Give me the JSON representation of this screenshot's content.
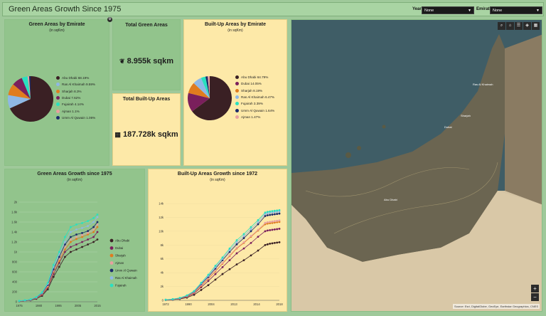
{
  "header": {
    "title": "Green Areas Growth Since 1975",
    "year_label": "Year",
    "year_value": "None",
    "emirate_label": "Emirate",
    "emirate_value": "None"
  },
  "green_by_emirate": {
    "title": "Green Areas by Emirate",
    "subtitle": "(in sqKm)",
    "legend": [
      {
        "label": "Abu Dhabi  68.19%",
        "value": 68.19,
        "color": "#3a2024"
      },
      {
        "label": "Ras Al Khaimah  9.59%",
        "value": 9.59,
        "color": "#8fb8e6"
      },
      {
        "label": "Sharjah  8.3%",
        "value": 8.3,
        "color": "#e07c1e"
      },
      {
        "label": "Dubai  7.62%",
        "value": 7.62,
        "color": "#7a1f5c"
      },
      {
        "label": "Fujairah  4.14%",
        "value": 4.14,
        "color": "#29e0c0"
      },
      {
        "label": "Ajman  1.1%",
        "value": 1.1,
        "color": "#e8a0a0"
      },
      {
        "label": "Umm Al Quwain  1.06%",
        "value": 1.06,
        "color": "#1b2a6b"
      }
    ]
  },
  "total_green": {
    "title": "Total Green Areas",
    "value": "8.955k sqkm",
    "icon": "plant-icon"
  },
  "total_built": {
    "title": "Total Built-Up Areas",
    "value": "187.728k sqkm",
    "icon": "building-icon"
  },
  "built_by_emirate": {
    "title": "Built-Up Areas by Emirate",
    "subtitle": "(in sqKm)",
    "legend": [
      {
        "label": "Abu Dhabi  64.79%",
        "value": 64.79,
        "color": "#3a2024"
      },
      {
        "label": "Dubai  14.05%",
        "value": 14.05,
        "color": "#7a1f5c"
      },
      {
        "label": "Sharjah  8.19%",
        "value": 8.19,
        "color": "#e07c1e"
      },
      {
        "label": "Ras Al Khaimah  6.47%",
        "value": 6.47,
        "color": "#8fb8e6"
      },
      {
        "label": "Fujairah  3.39%",
        "value": 3.39,
        "color": "#29e0c0"
      },
      {
        "label": "Umm Al Quwain  1.64%",
        "value": 1.64,
        "color": "#1b2a6b"
      },
      {
        "label": "Ajman  1.47%",
        "value": 1.47,
        "color": "#e8a0a0"
      }
    ]
  },
  "green_growth": {
    "title": "Green Areas Growth since 1975",
    "subtitle": "(in sqKm)"
  },
  "built_growth": {
    "title": "Built-Up Areas Growth since 1972",
    "subtitle": "(in sqKm)"
  },
  "map": {
    "attribution": "Source: Esri, DigitalGlobe, GeoEye, Earthstar Geographics, CNES",
    "labels": [
      "Ras Al Khaimah",
      "Dubai",
      "Sharjah",
      "Abu Dhabi"
    ],
    "tools": [
      "search-icon",
      "home-icon",
      "list-icon",
      "layers-icon",
      "basemap-icon"
    ],
    "zoom_in": "+",
    "zoom_out": "−"
  },
  "chart_data": [
    {
      "type": "line",
      "title": "Green Areas Growth since 1975",
      "ylabel": "(in sqKm)",
      "x": [
        1975,
        1978,
        1981,
        1984,
        1987,
        1990,
        1993,
        1996,
        1999,
        2002,
        2005,
        2008,
        2011,
        2014,
        2016
      ],
      "xticks": [
        "1975",
        "1980",
        "1995",
        "2005",
        "2015"
      ],
      "yticks": [
        "0",
        "200",
        "400",
        "600",
        "800",
        "1k",
        "1.2k",
        "1.4k",
        "1.6k",
        "1.8k",
        "2k"
      ],
      "ylim": [
        0,
        2000
      ],
      "legend_position": "right",
      "series": [
        {
          "name": "Abu Dhabi",
          "color": "#3a2024",
          "values": [
            10,
            20,
            30,
            60,
            120,
            250,
            500,
            700,
            900,
            1000,
            1050,
            1100,
            1150,
            1200,
            1250
          ]
        },
        {
          "name": "Dubai",
          "color": "#7a1f5c",
          "values": [
            10,
            20,
            35,
            70,
            140,
            280,
            560,
            780,
            1000,
            1100,
            1150,
            1200,
            1250,
            1300,
            1400
          ]
        },
        {
          "name": "Sharjah",
          "color": "#e07c1e",
          "values": [
            12,
            22,
            38,
            75,
            150,
            300,
            600,
            820,
            1050,
            1200,
            1260,
            1300,
            1350,
            1400,
            1500
          ]
        },
        {
          "name": "Ajman",
          "color": "#e8a0a0",
          "values": [
            14,
            24,
            40,
            80,
            160,
            320,
            620,
            860,
            1100,
            1250,
            1300,
            1340,
            1380,
            1450,
            1550
          ]
        },
        {
          "name": "Umm Al Quwain",
          "color": "#1b2a6b",
          "values": [
            15,
            25,
            42,
            85,
            170,
            340,
            650,
            900,
            1150,
            1300,
            1350,
            1380,
            1420,
            1500,
            1600
          ]
        },
        {
          "name": "Ras Al Khaimah",
          "color": "#8fb8e6",
          "values": [
            16,
            27,
            45,
            90,
            180,
            360,
            700,
            960,
            1200,
            1400,
            1450,
            1480,
            1520,
            1600,
            1700
          ]
        },
        {
          "name": "Fujairah",
          "color": "#29e0c0",
          "values": [
            18,
            30,
            50,
            95,
            190,
            380,
            740,
            1000,
            1300,
            1500,
            1550,
            1580,
            1620,
            1680,
            1750
          ]
        }
      ]
    },
    {
      "type": "line",
      "title": "Built-Up Areas Growth since 1972",
      "ylabel": "(in sqKm)",
      "x": [
        1972,
        1975,
        1978,
        1981,
        1984,
        1987,
        1990,
        1993,
        1996,
        1999,
        2002,
        2005,
        2008,
        2011,
        2014,
        2015,
        2016,
        2017,
        2018,
        2019,
        2020
      ],
      "xticks": [
        "1972",
        "1990",
        "2004",
        "2013",
        "2014",
        "2018"
      ],
      "yticks": [
        "0",
        "2k",
        "4k",
        "6k",
        "8k",
        "10k",
        "12k",
        "14k"
      ],
      "ylim": [
        0,
        14000
      ],
      "series": [
        {
          "name": "Abu Dhabi",
          "color": "#3a2024",
          "values": [
            50,
            100,
            200,
            400,
            800,
            1500,
            2200,
            3000,
            3800,
            4500,
            5200,
            5800,
            6500,
            7200,
            8000,
            8100,
            8200,
            8250,
            8300,
            8350,
            8400
          ]
        },
        {
          "name": "Dubai",
          "color": "#7a1f5c",
          "values": [
            60,
            120,
            250,
            500,
            1000,
            1900,
            2800,
            3800,
            4800,
            5800,
            6800,
            7500,
            8300,
            9200,
            10000,
            10100,
            10150,
            10200,
            10250,
            10300,
            10350
          ]
        },
        {
          "name": "Sharjah",
          "color": "#e07c1e",
          "values": [
            70,
            140,
            280,
            560,
            1100,
            2100,
            3100,
            4200,
            5300,
            6400,
            7500,
            8300,
            9200,
            10100,
            11000,
            11100,
            11150,
            11200,
            11250,
            11300,
            11350
          ]
        },
        {
          "name": "Ajman",
          "color": "#e8a0a0",
          "values": [
            75,
            150,
            300,
            600,
            1150,
            2200,
            3200,
            4300,
            5400,
            6500,
            7600,
            8400,
            9300,
            10200,
            11200,
            11300,
            11350,
            11400,
            11450,
            11500,
            11550
          ]
        },
        {
          "name": "Umm Al Quwain",
          "color": "#1b2a6b",
          "values": [
            80,
            160,
            320,
            650,
            1250,
            2350,
            3400,
            4600,
            5800,
            7000,
            8100,
            9000,
            10000,
            11000,
            12200,
            12300,
            12350,
            12400,
            12450,
            12500,
            12550
          ]
        },
        {
          "name": "Ras Al Khaimah",
          "color": "#8fb8e6",
          "values": [
            85,
            170,
            340,
            680,
            1300,
            2450,
            3550,
            4800,
            6000,
            7250,
            8400,
            9300,
            10300,
            11300,
            12500,
            12600,
            12650,
            12700,
            12750,
            12800,
            12850
          ]
        },
        {
          "name": "Fujairah",
          "color": "#29e0c0",
          "values": [
            90,
            180,
            360,
            720,
            1350,
            2550,
            3700,
            5000,
            6200,
            7500,
            8700,
            9600,
            10600,
            11600,
            12700,
            12800,
            12850,
            12900,
            12950,
            13000,
            13050
          ]
        }
      ]
    }
  ]
}
